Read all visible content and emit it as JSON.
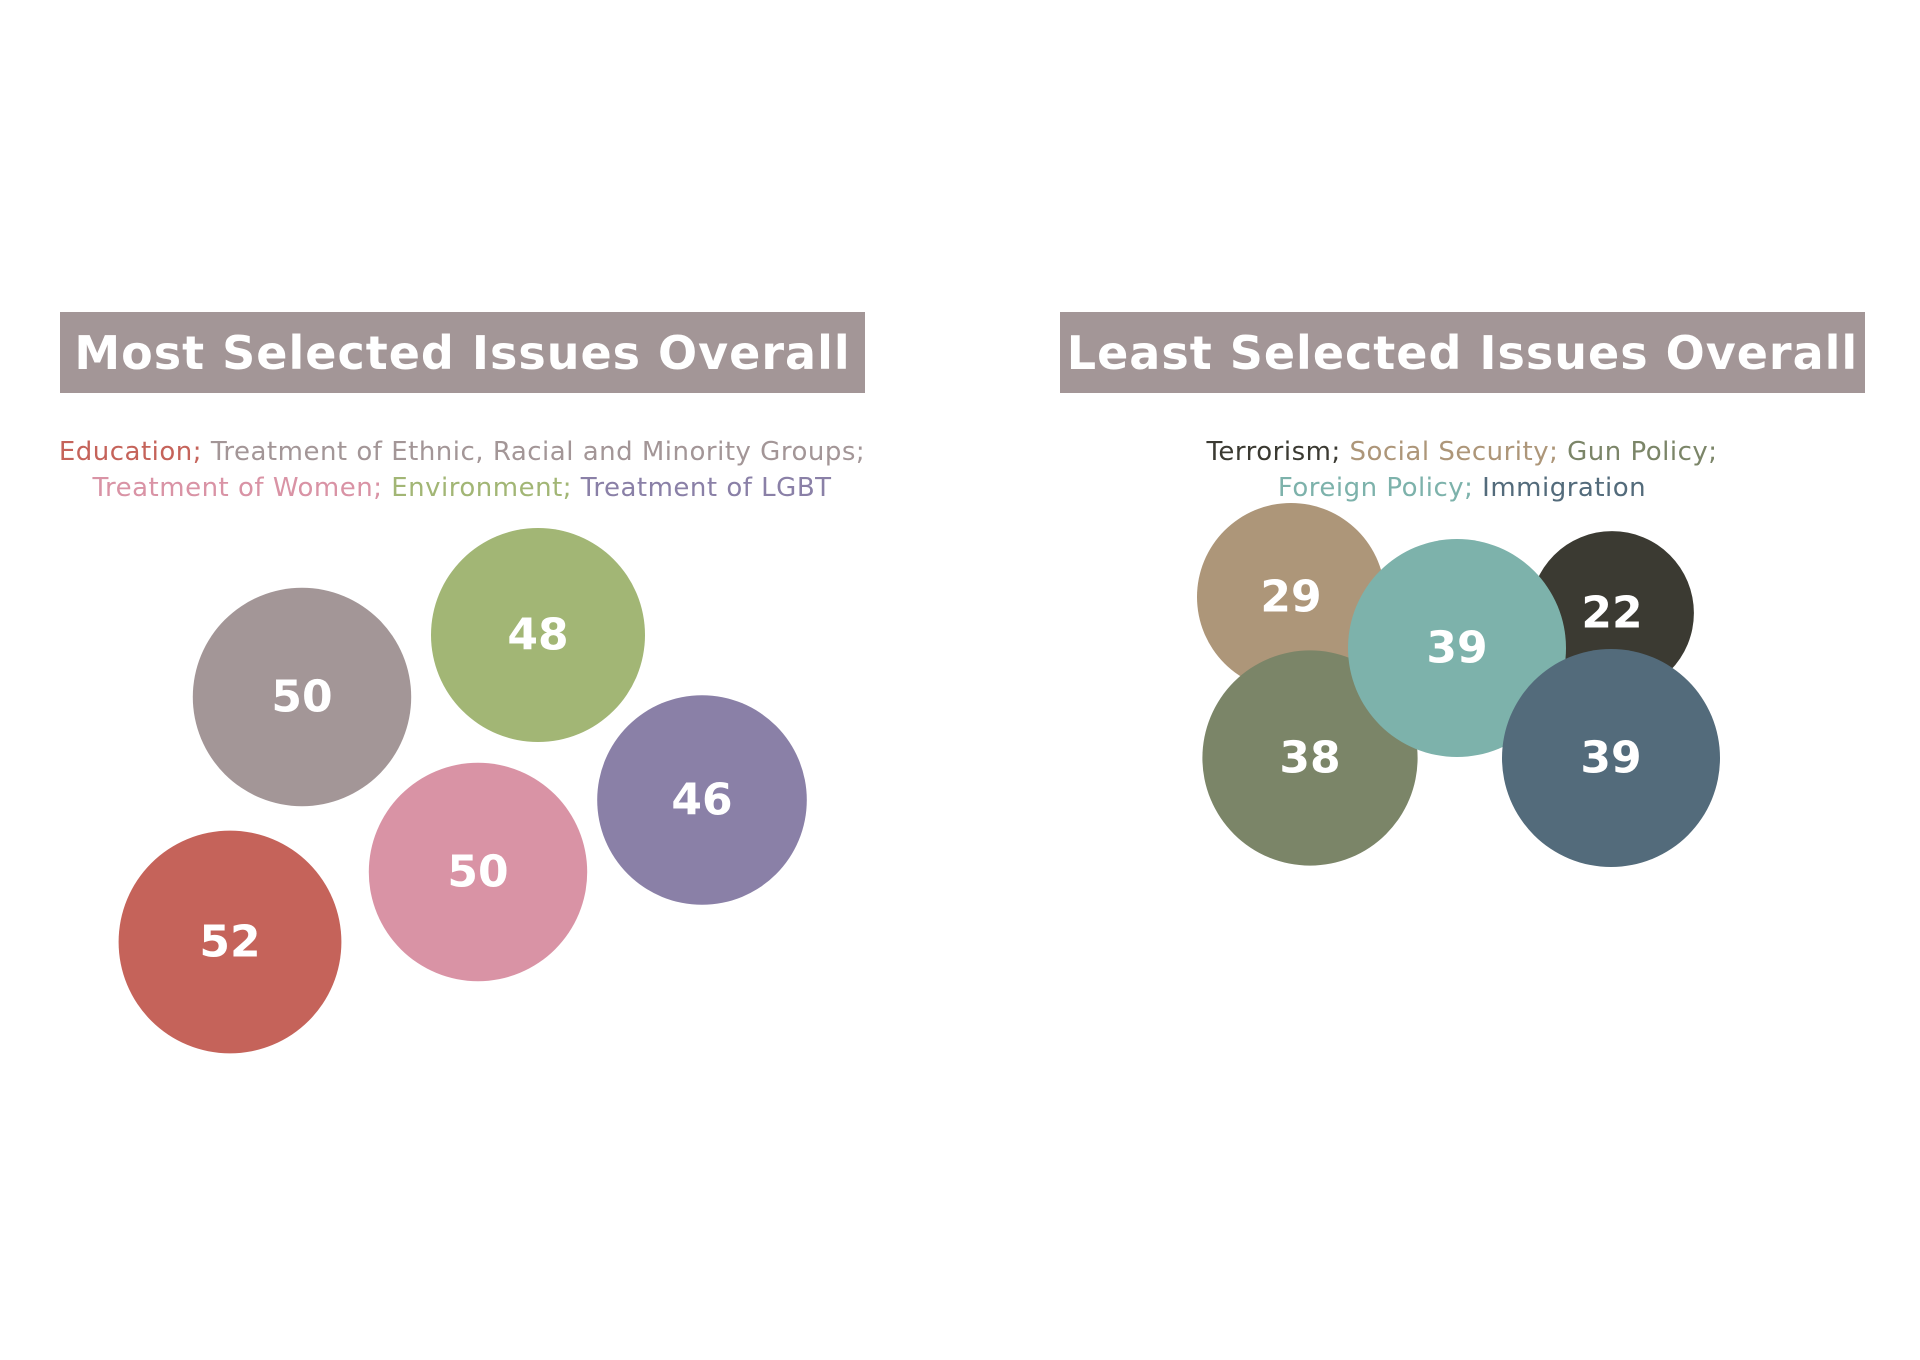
{
  "chart_data": [
    {
      "type": "bubble",
      "title": "Most Selected Issues Overall",
      "legend_lines": [
        [
          {
            "label": "Education",
            "color": "#c5635a"
          },
          {
            "label": "Treatment of Ethnic, Racial and Minority Groups",
            "color": "#a39697"
          }
        ],
        [
          {
            "label": "Treatment of Women",
            "color": "#d993a5"
          },
          {
            "label": "Environment",
            "color": "#a2b675"
          },
          {
            "label": "Treatment of LGBT",
            "color": "#8a80a7"
          }
        ]
      ],
      "points": [
        {
          "label": "Education",
          "value": 52,
          "color": "#c5635a"
        },
        {
          "label": "Treatment of Ethnic, Racial and Minority Groups",
          "value": 50,
          "color": "#a39697"
        },
        {
          "label": "Treatment of Women",
          "value": 50,
          "color": "#d993a5"
        },
        {
          "label": "Environment",
          "value": 48,
          "color": "#a2b675"
        },
        {
          "label": "Treatment of LGBT",
          "value": 46,
          "color": "#8a80a7"
        }
      ]
    },
    {
      "type": "bubble",
      "title": "Least Selected Issues Overall",
      "legend_lines": [
        [
          {
            "label": "Terrorism",
            "color": "#3b3a32"
          },
          {
            "label": "Social Security",
            "color": "#ad9679"
          },
          {
            "label": "Gun Policy",
            "color": "#7b8568"
          }
        ],
        [
          {
            "label": "Foreign Policy",
            "color": "#7db2ab"
          },
          {
            "label": "Immigration",
            "color": "#536b7b"
          }
        ]
      ],
      "points": [
        {
          "label": "Terrorism",
          "value": 22,
          "color": "#3b3a32"
        },
        {
          "label": "Social Security",
          "value": 29,
          "color": "#ad9679"
        },
        {
          "label": "Gun Policy",
          "value": 38,
          "color": "#7b8568"
        },
        {
          "label": "Foreign Policy",
          "value": 39,
          "color": "#7db2ab"
        },
        {
          "label": "Immigration",
          "value": 39,
          "color": "#536b7b"
        }
      ]
    }
  ]
}
